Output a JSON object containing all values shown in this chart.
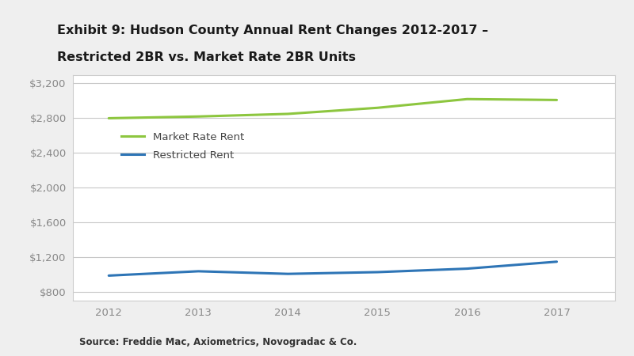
{
  "title_line1": "Exhibit 9: Hudson County Annual Rent Changes 2012-2017 –",
  "title_line2": "Restricted 2BR vs. Market Rate 2BR Units",
  "years": [
    2012,
    2013,
    2014,
    2015,
    2016,
    2017
  ],
  "market_rate": [
    2800,
    2820,
    2850,
    2920,
    3020,
    3010
  ],
  "restricted": [
    990,
    1040,
    1010,
    1030,
    1070,
    1150
  ],
  "market_rate_color": "#8DC63F",
  "restricted_color": "#2E75B6",
  "ylim": [
    700,
    3300
  ],
  "yticks": [
    800,
    1200,
    1600,
    2000,
    2400,
    2800,
    3200
  ],
  "ytick_labels": [
    "$800",
    "$1,200",
    "$1,600",
    "$2,000",
    "$2,400",
    "$2,800",
    "$3,200"
  ],
  "xticks": [
    2012,
    2013,
    2014,
    2015,
    2016,
    2017
  ],
  "line_width": 2.2,
  "legend_market_label": "Market Rate Rent",
  "legend_restricted_label": "Restricted Rent",
  "source_text": "Source: Freddie Mac, Axiometrics, Novogradac & Co.",
  "background_color": "#FFFFFF",
  "outer_bg_color": "#EFEFEF",
  "grid_color": "#C8C8C8",
  "box_edge_color": "#CCCCCC",
  "title_fontsize": 11.5,
  "axis_fontsize": 9.5,
  "legend_fontsize": 9.5,
  "source_fontsize": 8.5,
  "tick_label_color": "#888888"
}
